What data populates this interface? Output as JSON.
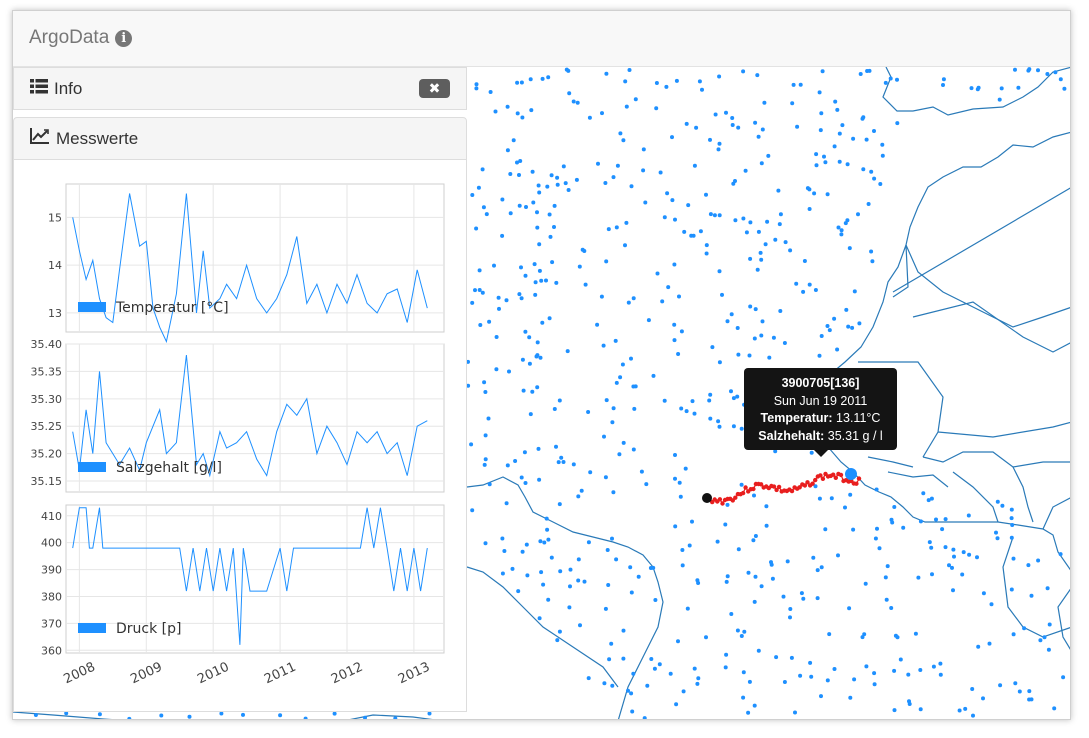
{
  "app": {
    "title": "ArgoData",
    "title_icon": "info-circle-icon"
  },
  "panels": {
    "info": {
      "title": "Info",
      "icon": "list-icon",
      "close_label": "✖",
      "close_icon": "close-icon"
    },
    "messwerte": {
      "title": "Messwerte",
      "icon": "line-chart-icon"
    }
  },
  "tooltip": {
    "title": "3900705[136]",
    "date": "Sun Jun 19 2011",
    "temp_label": "Temperatur:",
    "temp_value": "13.11°C",
    "salt_label": "Salzhehalt:",
    "salt_value": "35.31 g / l"
  },
  "colors": {
    "series": "#1e90ff",
    "float_dot": "#1e90ff",
    "track": "#e81e1e",
    "land_line": "#2a7ab8"
  },
  "chart_data": [
    {
      "type": "line",
      "legend": "Temperatur [°C]",
      "x_ticks": [
        "2008",
        "2009",
        "2010",
        "2011",
        "2012",
        "2013"
      ],
      "y_ticks": [
        13,
        14,
        15
      ],
      "ylim": [
        12.6,
        15.7
      ],
      "x": [
        2007.9,
        2008.0,
        2008.1,
        2008.2,
        2008.3,
        2008.4,
        2008.5,
        2008.6,
        2008.75,
        2008.9,
        2009.0,
        2009.1,
        2009.2,
        2009.3,
        2009.45,
        2009.6,
        2009.75,
        2009.85,
        2009.95,
        2010.1,
        2010.2,
        2010.35,
        2010.5,
        2010.65,
        2010.8,
        2010.95,
        2011.1,
        2011.25,
        2011.4,
        2011.55,
        2011.7,
        2011.85,
        2012.0,
        2012.15,
        2012.3,
        2012.45,
        2012.6,
        2012.75,
        2012.9,
        2013.05,
        2013.2
      ],
      "y": [
        15.0,
        14.3,
        13.7,
        14.1,
        13.3,
        12.9,
        12.8,
        13.9,
        15.5,
        14.4,
        14.5,
        13.1,
        12.7,
        12.4,
        13.4,
        15.5,
        13.0,
        14.3,
        13.1,
        13.3,
        13.6,
        13.3,
        14.0,
        13.3,
        13.0,
        13.3,
        13.8,
        14.6,
        13.2,
        13.6,
        13.0,
        13.6,
        13.2,
        13.8,
        13.2,
        13.0,
        13.4,
        13.5,
        12.8,
        13.9,
        13.1
      ]
    },
    {
      "type": "line",
      "legend": "Salzgehalt [g/l]",
      "x_ticks": [
        "2008",
        "2009",
        "2010",
        "2011",
        "2012",
        "2013"
      ],
      "y_ticks": [
        35.15,
        35.2,
        35.25,
        35.3,
        35.35,
        35.4
      ],
      "ylim": [
        35.13,
        35.4
      ],
      "x": [
        2007.9,
        2008.0,
        2008.1,
        2008.2,
        2008.3,
        2008.4,
        2008.5,
        2008.6,
        2008.75,
        2008.9,
        2009.0,
        2009.1,
        2009.2,
        2009.3,
        2009.45,
        2009.6,
        2009.75,
        2009.85,
        2009.95,
        2010.1,
        2010.2,
        2010.35,
        2010.5,
        2010.65,
        2010.8,
        2010.95,
        2011.1,
        2011.25,
        2011.4,
        2011.55,
        2011.7,
        2011.85,
        2012.0,
        2012.15,
        2012.3,
        2012.45,
        2012.6,
        2012.75,
        2012.9,
        2013.05,
        2013.2
      ],
      "y": [
        35.24,
        35.17,
        35.28,
        35.2,
        35.35,
        35.22,
        35.2,
        35.18,
        35.21,
        35.17,
        35.22,
        35.25,
        35.28,
        35.2,
        35.22,
        35.38,
        35.18,
        35.2,
        35.16,
        35.24,
        35.21,
        35.22,
        35.24,
        35.19,
        35.16,
        35.24,
        35.29,
        35.27,
        35.3,
        35.2,
        35.25,
        35.22,
        35.18,
        35.24,
        35.22,
        35.24,
        35.2,
        35.22,
        35.16,
        35.25,
        35.26
      ]
    },
    {
      "type": "line",
      "legend": "Druck [p]",
      "x_ticks": [
        "2008",
        "2009",
        "2010",
        "2011",
        "2012",
        "2013"
      ],
      "y_ticks": [
        360,
        370,
        380,
        390,
        400,
        410
      ],
      "ylim": [
        359,
        414
      ],
      "x": [
        2007.9,
        2008.0,
        2008.1,
        2008.15,
        2008.2,
        2008.3,
        2008.35,
        2008.45,
        2009.0,
        2009.5,
        2009.6,
        2009.7,
        2009.8,
        2009.9,
        2010.0,
        2010.1,
        2010.2,
        2010.3,
        2010.4,
        2010.45,
        2010.55,
        2010.6,
        2010.8,
        2011.0,
        2011.1,
        2011.2,
        2011.3,
        2011.5,
        2012.0,
        2012.2,
        2012.3,
        2012.4,
        2012.5,
        2012.6,
        2012.7,
        2012.8,
        2012.9,
        2013.0,
        2013.1,
        2013.2
      ],
      "y": [
        398,
        413,
        413,
        398,
        398,
        413,
        398,
        398,
        398,
        398,
        382,
        398,
        382,
        398,
        382,
        398,
        382,
        398,
        362,
        398,
        382,
        382,
        382,
        398,
        382,
        398,
        398,
        398,
        398,
        398,
        413,
        398,
        413,
        398,
        382,
        398,
        382,
        398,
        382,
        398
      ]
    }
  ]
}
